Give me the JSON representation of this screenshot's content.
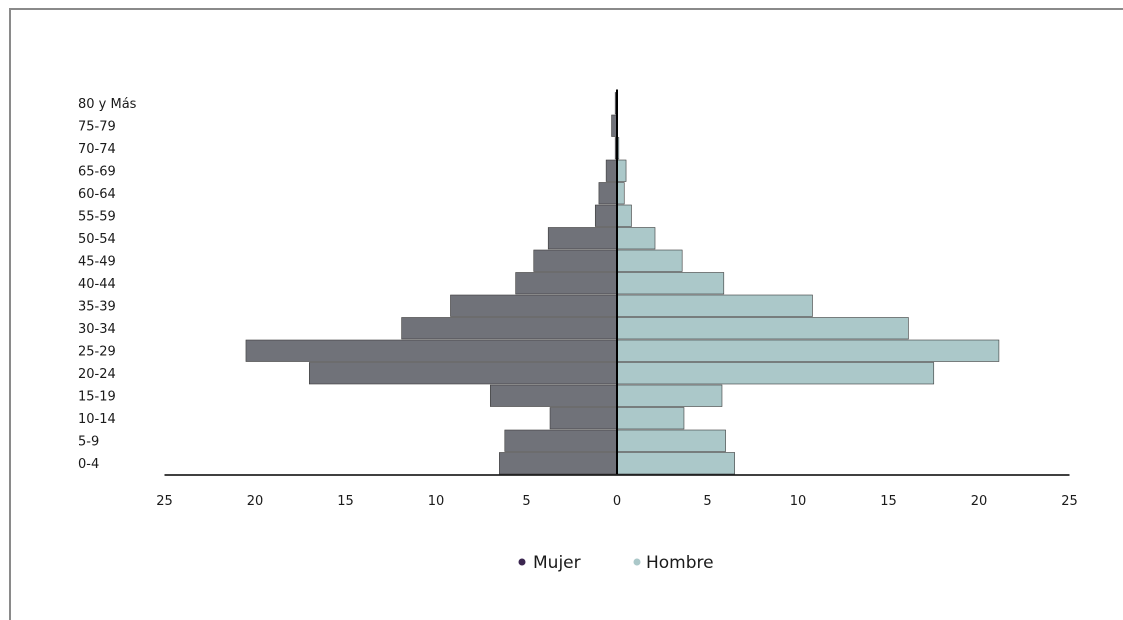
{
  "chart_data": {
    "type": "bar",
    "orientation": "horizontal",
    "style": "population-pyramid",
    "categories": [
      "0-4",
      "5-9",
      "10-14",
      "15-19",
      "20-24",
      "25-29",
      "30-34",
      "35-39",
      "40-44",
      "45-49",
      "50-54",
      "55-59",
      "60-64",
      "65-69",
      "70-74",
      "75-79",
      "80 y Más"
    ],
    "series": [
      {
        "name": "Mujer",
        "color": "#707279",
        "values": [
          6.5,
          6.2,
          3.7,
          7.0,
          17.0,
          20.5,
          11.9,
          9.2,
          5.6,
          4.6,
          3.8,
          1.2,
          1.0,
          0.6,
          0.1,
          0.3,
          0.1
        ]
      },
      {
        "name": "Hombre",
        "color": "#abc8c9",
        "values": [
          6.5,
          6.0,
          3.7,
          5.8,
          17.5,
          21.1,
          16.1,
          10.8,
          5.9,
          3.6,
          2.1,
          0.8,
          0.4,
          0.5,
          0.1,
          0.0,
          0.0
        ]
      }
    ],
    "xlim": [
      -25,
      25
    ],
    "xticks": [
      {
        "value": -25,
        "label": "25"
      },
      {
        "value": -20,
        "label": "20"
      },
      {
        "value": -15,
        "label": "15"
      },
      {
        "value": -10,
        "label": "10"
      },
      {
        "value": -5,
        "label": "5"
      },
      {
        "value": 0,
        "label": "0"
      },
      {
        "value": 5,
        "label": "5"
      },
      {
        "value": 10,
        "label": "10"
      },
      {
        "value": 15,
        "label": "15"
      },
      {
        "value": 20,
        "label": "20"
      },
      {
        "value": 25,
        "label": "25"
      }
    ],
    "grid": false,
    "legend": {
      "position": "bottom-center",
      "items": [
        {
          "label": "Mujer",
          "marker_color": "#3b2650"
        },
        {
          "label": "Hombre",
          "marker_color": "#abc8c9"
        }
      ]
    }
  }
}
